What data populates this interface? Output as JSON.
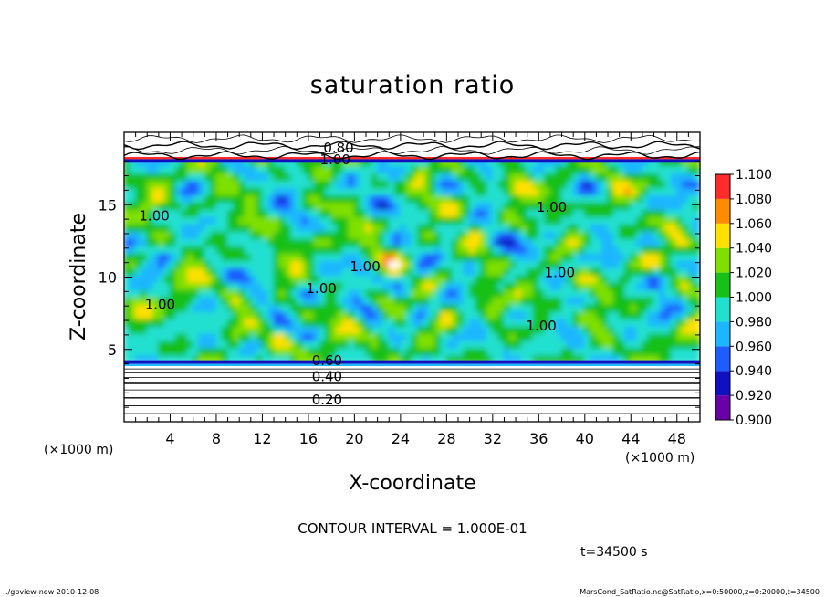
{
  "chart_data": {
    "type": "heatmap",
    "title": "saturation ratio",
    "xlabel": "X-coordinate",
    "ylabel": "Z-coordinate",
    "x_unit": "(×1000 m)",
    "x_unit_right": "(×1000 m)",
    "y_unit": "(×1000 m)",
    "xlim": [
      0,
      50
    ],
    "ylim": [
      0,
      20
    ],
    "x_ticks": [
      4,
      8,
      12,
      16,
      20,
      24,
      28,
      32,
      36,
      40,
      44,
      48
    ],
    "y_ticks": [
      5,
      10,
      15
    ],
    "colorbar": {
      "levels": [
        "0.900",
        "0.920",
        "0.940",
        "0.960",
        "0.980",
        "1.000",
        "1.020",
        "1.040",
        "1.060",
        "1.080",
        "1.100"
      ],
      "colors": [
        "#6a00a8",
        "#1010c0",
        "#1f5cff",
        "#1bb6ff",
        "#20e0d0",
        "#16c016",
        "#7fe000",
        "#ffe000",
        "#ff8c00",
        "#ff2a2a",
        "#ff9aa0"
      ]
    },
    "contour_labels": [
      {
        "text": "0.80",
        "x": 17.3,
        "z": 18.6
      },
      {
        "text": "1.00",
        "x": 17.0,
        "z": 17.8
      },
      {
        "text": "1.00",
        "x": 1.3,
        "z": 13.9
      },
      {
        "text": "1.00",
        "x": 19.6,
        "z": 10.4
      },
      {
        "text": "1.00",
        "x": 15.8,
        "z": 8.9
      },
      {
        "text": "1.00",
        "x": 1.8,
        "z": 7.8
      },
      {
        "text": "1.00",
        "x": 36.5,
        "z": 10.0
      },
      {
        "text": "1.00",
        "x": 35.8,
        "z": 14.5
      },
      {
        "text": "1.00",
        "x": 34.9,
        "z": 6.3
      },
      {
        "text": "0.60",
        "x": 16.3,
        "z": 3.9
      },
      {
        "text": "0.40",
        "x": 16.3,
        "z": 2.8
      },
      {
        "text": "0.20",
        "x": 16.3,
        "z": 1.2
      }
    ],
    "contour_interval": "CONTOUR INTERVAL = 1.000E-01",
    "time": "t=34500 s"
  },
  "footer": {
    "left": "./gpview-new   2010-12-08",
    "right": "MarsCond_SatRatio.nc@SatRatio,x=0:50000,z=0:20000,t=34500"
  }
}
